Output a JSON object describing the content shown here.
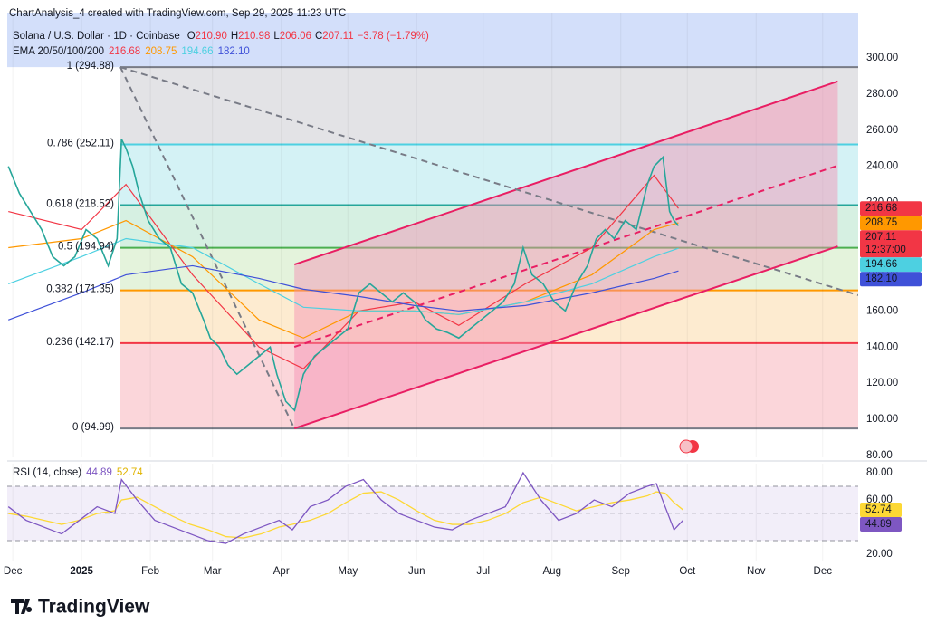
{
  "chart_data": {
    "type": "line",
    "attribution": "ChartAnalysis_4 created with TradingView.com, Sep 29, 2025 11:23 UTC",
    "title": "Solana / U.S. Dollar · 1D · Coinbase",
    "ohlc": [
      {
        "label": "O",
        "value": "210.90"
      },
      {
        "label": "H",
        "value": "210.98"
      },
      {
        "label": "L",
        "value": "206.06"
      },
      {
        "label": "C",
        "value": "207.11"
      }
    ],
    "change": "−3.78 (−1.79%)",
    "countdown": "12:37:00",
    "brand": "TradingView",
    "xlim": [
      -33.5,
      350
    ],
    "xticks": [
      {
        "value": -31,
        "label": "Dec"
      },
      {
        "value": 0,
        "label": "2025"
      },
      {
        "value": 31,
        "label": "Feb"
      },
      {
        "value": 59,
        "label": "Mar"
      },
      {
        "value": 90,
        "label": "Apr"
      },
      {
        "value": 120,
        "label": "May"
      },
      {
        "value": 151,
        "label": "Jun"
      },
      {
        "value": 181,
        "label": "Jul"
      },
      {
        "value": 212,
        "label": "Aug"
      },
      {
        "value": 243,
        "label": "Sep"
      },
      {
        "value": 273,
        "label": "Oct"
      },
      {
        "value": 304,
        "label": "Nov"
      },
      {
        "value": 334,
        "label": "Dec"
      }
    ],
    "grid": true,
    "ylim": [
      79,
      323
    ],
    "yticks": [
      {
        "value": 300,
        "label": "300.00"
      },
      {
        "value": 280,
        "label": "280.00"
      },
      {
        "value": 260,
        "label": "260.00"
      },
      {
        "value": 240,
        "label": "240.00"
      },
      {
        "value": 220,
        "label": "220.00"
      },
      {
        "value": 200,
        "label": "200.00"
      },
      {
        "value": 180,
        "label": "180.00"
      },
      {
        "value": 160,
        "label": "160.00"
      },
      {
        "value": 140,
        "label": "140.00"
      },
      {
        "value": 120,
        "label": "120.00"
      },
      {
        "value": 100,
        "label": "100.00"
      },
      {
        "value": 80,
        "label": "80.00"
      }
    ],
    "x": [
      -33,
      -28,
      -23,
      -18,
      -13,
      -8,
      -3,
      2,
      7,
      12,
      16,
      18,
      20,
      23,
      26,
      30,
      35,
      40,
      45,
      50,
      55,
      58,
      62,
      66,
      70,
      75,
      80,
      85,
      88,
      92,
      96,
      100,
      105,
      110,
      115,
      120,
      125,
      130,
      135,
      140,
      145,
      150,
      155,
      160,
      165,
      170,
      175,
      180,
      185,
      190,
      195,
      199,
      203,
      208,
      213,
      218,
      223,
      228,
      232,
      236,
      240,
      245,
      250,
      255,
      258,
      262,
      265,
      267,
      269
    ],
    "series": [
      {
        "color": "#26a69a",
        "badge": "#f23645",
        "last_label": "207.11",
        "values": [
          240,
          225,
          215,
          205,
          190,
          185,
          190,
          205,
          200,
          185,
          200,
          255,
          250,
          240,
          225,
          210,
          200,
          195,
          175,
          170,
          155,
          145,
          140,
          130,
          125,
          130,
          135,
          140,
          125,
          110,
          105,
          125,
          135,
          140,
          145,
          150,
          170,
          175,
          170,
          165,
          170,
          165,
          155,
          150,
          148,
          145,
          150,
          155,
          160,
          165,
          175,
          195,
          180,
          175,
          165,
          160,
          175,
          185,
          200,
          205,
          200,
          210,
          205,
          230,
          240,
          245,
          215,
          210,
          207.11
        ]
      }
    ],
    "ema": {
      "label": "EMA 20/50/100/200",
      "x": [
        -33,
        0,
        20,
        50,
        80,
        100,
        125,
        150,
        170,
        200,
        230,
        258,
        269
      ],
      "series": [
        {
          "color": "#f23645",
          "last_label": "216.68",
          "values": [
            215,
            205,
            230,
            180,
            140,
            128,
            160,
            165,
            152,
            175,
            195,
            235,
            216.68
          ]
        },
        {
          "color": "#ff9800",
          "last_label": "208.75",
          "values": [
            195,
            200,
            210,
            190,
            155,
            145,
            160,
            160,
            158,
            165,
            180,
            205,
            208.75
          ]
        },
        {
          "color": "#4dd0e1",
          "last_label": "194.66",
          "values": [
            175,
            190,
            200,
            195,
            175,
            162,
            160,
            160,
            158,
            165,
            175,
            190,
            194.66
          ]
        },
        {
          "color": "#3f51d8",
          "last_label": "182.10",
          "values": [
            155,
            170,
            180,
            185,
            178,
            172,
            168,
            163,
            160,
            163,
            170,
            178,
            182.1
          ]
        }
      ]
    },
    "fib": {
      "start": 17.5,
      "above_fill": "#d3dffa",
      "levels": [
        {
          "label": "1 (294.88)",
          "value": 294.88,
          "color": "#787b86",
          "fill": "#e3e3e6"
        },
        {
          "label": "0.786 (252.11)",
          "value": 252.11,
          "color": "#4dd0e1",
          "fill": "#d4f2f5"
        },
        {
          "label": "0.618 (218.52)",
          "value": 218.52,
          "color": "#26a69a",
          "fill": "#d6f0e2"
        },
        {
          "label": "0.5 (194.94)",
          "value": 194.94,
          "color": "#4caf50",
          "fill": "#e4f3dc"
        },
        {
          "label": "0.382 (171.35)",
          "value": 171.35,
          "color": "#ff9800",
          "fill": "#fdebd0"
        },
        {
          "label": "0.236 (142.17)",
          "value": 142.17,
          "color": "#f23645",
          "fill": "#fbd6da"
        },
        {
          "label": "0 (94.99)",
          "value": 94.99,
          "color": "#787b86"
        }
      ]
    },
    "channel": {
      "color": "#e91e63",
      "fill": "#f48fb1",
      "upper": {
        "x": [
          95.9,
          340.8
        ],
        "y": [
          185.7,
          287
        ]
      },
      "lower": {
        "x": [
          95.9,
          340.8
        ],
        "y": [
          95,
          195.7
        ]
      }
    },
    "lines": [
      {
        "color": "#e91e63",
        "dashed": true,
        "x": [
          95.9,
          340.8
        ],
        "y": [
          140.1,
          240.4
        ]
      },
      {
        "color": "#787b86",
        "dashed": true,
        "x": [
          17.5,
          350
        ],
        "y": [
          294.88,
          168.7
        ]
      },
      {
        "color": "#787b86",
        "dashed": true,
        "x": [
          17.5,
          95.9
        ],
        "y": [
          294.88,
          95
        ]
      }
    ],
    "rsi": {
      "label": "RSI (14, close)",
      "ylim": [
        14.7,
        86.7
      ],
      "yticks": [
        {
          "value": 80,
          "label": "80.00"
        },
        {
          "value": 60,
          "label": "60.00"
        },
        {
          "value": 40,
          "label": "40.00"
        },
        {
          "value": 20,
          "label": "20.00"
        }
      ],
      "bands": [
        70,
        50,
        30
      ],
      "band_color": "#7e57c2",
      "x": [
        -33,
        -25,
        -17,
        -9,
        -1,
        7,
        15,
        18,
        25,
        33,
        41,
        49,
        57,
        65,
        73,
        81,
        89,
        95,
        103,
        111,
        119,
        127,
        135,
        143,
        151,
        159,
        167,
        175,
        183,
        191,
        199,
        207,
        215,
        223,
        231,
        239,
        247,
        255,
        259,
        263,
        267,
        271
      ],
      "series": [
        {
          "color": "#7e57c2",
          "last_label": "44.89",
          "values": [
            55,
            45,
            40,
            35,
            45,
            55,
            50,
            75,
            60,
            45,
            40,
            35,
            30,
            28,
            35,
            40,
            45,
            38,
            55,
            60,
            70,
            75,
            60,
            50,
            45,
            40,
            38,
            45,
            50,
            55,
            80,
            60,
            45,
            50,
            60,
            55,
            65,
            70,
            72,
            55,
            38,
            44.89
          ]
        },
        {
          "color": "#fdd835",
          "last_label": "52.74",
          "values": [
            50,
            48,
            45,
            42,
            45,
            50,
            52,
            60,
            62,
            55,
            48,
            42,
            38,
            33,
            32,
            35,
            40,
            42,
            45,
            50,
            58,
            65,
            66,
            60,
            52,
            45,
            42,
            42,
            45,
            50,
            58,
            62,
            57,
            52,
            55,
            58,
            60,
            63,
            66,
            65,
            58,
            52.74
          ]
        }
      ]
    }
  }
}
